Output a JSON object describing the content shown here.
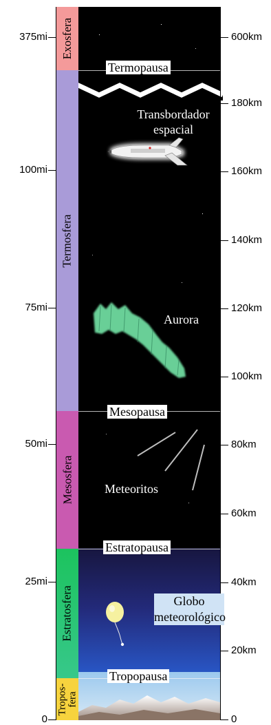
{
  "axis_left": {
    "ticks": [
      "375mi",
      "100mi",
      "75mi",
      "50mi",
      "25mi",
      "0"
    ]
  },
  "axis_right": {
    "ticks": [
      "600km",
      "180km",
      "160km",
      "140km",
      "120km",
      "100km",
      "80km",
      "60km",
      "40km",
      "20km",
      "0"
    ]
  },
  "layers": [
    {
      "name": "Exosfera",
      "color": "#f08a8a"
    },
    {
      "name": "Termosfera",
      "color": "#a99bd8"
    },
    {
      "name": "Mesosfera",
      "color": "#c95ab0"
    },
    {
      "name": "Estratosfera",
      "color": "#21c06a"
    },
    {
      "name": "Tropos-fera",
      "color": "#f7d33e"
    }
  ],
  "boundaries": [
    "Termopausa",
    "Mesopausa",
    "Estratopausa",
    "Tropopausa"
  ],
  "features": {
    "shuttle": "Transbordador espacial",
    "aurora": "Aurora",
    "meteors": "Meteoritos",
    "balloon": "Globo meteorológico"
  },
  "colors": {
    "space": "#000000",
    "stratosphere_top": "#1b1a4a",
    "stratosphere_bottom": "#2a6fd6",
    "aurora": "#6fe3a6"
  }
}
